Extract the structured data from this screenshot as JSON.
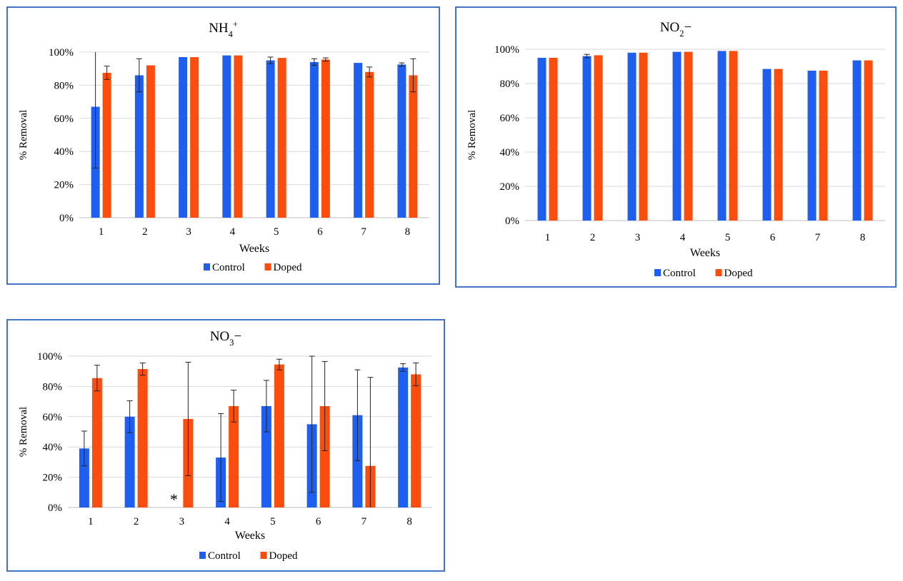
{
  "colors": {
    "control": "#1f5ff0",
    "doped": "#fb4d0e",
    "grid": "#d9d9d9",
    "frame": "#4472c4"
  },
  "chart_data": [
    {
      "type": "bar",
      "title_main": "NH",
      "title_sub": "4",
      "title_sup": "+",
      "xlabel": "Weeks",
      "ylabel": "% Removal",
      "ylim": [
        0,
        1
      ],
      "yticks": [
        "0%",
        "20%",
        "40%",
        "60%",
        "80%",
        "100%"
      ],
      "categories": [
        "1",
        "2",
        "3",
        "4",
        "5",
        "6",
        "7",
        "8"
      ],
      "legend_position": "bottom",
      "series": [
        {
          "name": "Control",
          "values": [
            0.67,
            0.86,
            0.97,
            0.98,
            0.95,
            0.94,
            0.935,
            0.925
          ],
          "err": [
            0.37,
            0.1,
            0.0,
            0.0,
            0.02,
            0.02,
            0.0,
            0.01
          ]
        },
        {
          "name": "Doped",
          "values": [
            0.875,
            0.92,
            0.97,
            0.98,
            0.965,
            0.955,
            0.88,
            0.86
          ],
          "err": [
            0.04,
            0.0,
            0.0,
            0.0,
            0.0,
            0.01,
            0.03,
            0.1
          ]
        }
      ]
    },
    {
      "type": "bar",
      "title_main": "NO",
      "title_sub": "2",
      "title_suffix": "−",
      "xlabel": "Weeks",
      "ylabel": "% Removal",
      "ylim": [
        0,
        1
      ],
      "yticks": [
        "0%",
        "20%",
        "40%",
        "60%",
        "80%",
        "100%"
      ],
      "categories": [
        "1",
        "2",
        "3",
        "4",
        "5",
        "6",
        "7",
        "8"
      ],
      "legend_position": "bottom",
      "series": [
        {
          "name": "Control",
          "values": [
            0.95,
            0.96,
            0.98,
            0.985,
            0.99,
            0.885,
            0.875,
            0.935
          ],
          "err": [
            0.0,
            0.01,
            0.0,
            0.0,
            0.0,
            0.0,
            0.0,
            0.0
          ]
        },
        {
          "name": "Doped",
          "values": [
            0.95,
            0.965,
            0.98,
            0.985,
            0.99,
            0.885,
            0.875,
            0.935
          ],
          "err": [
            0.0,
            0.0,
            0.0,
            0.0,
            0.0,
            0.0,
            0.0,
            0.0
          ]
        }
      ]
    },
    {
      "type": "bar",
      "title_main": "NO",
      "title_sub": "3",
      "title_suffix": "−",
      "xlabel": "Weeks",
      "ylabel": "% Removal",
      "ylim": [
        0,
        1
      ],
      "yticks": [
        "0%",
        "20%",
        "40%",
        "60%",
        "80%",
        "100%"
      ],
      "categories": [
        "1",
        "2",
        "3",
        "4",
        "5",
        "6",
        "7",
        "8"
      ],
      "legend_position": "bottom",
      "annotation": {
        "text": "*",
        "category": "3"
      },
      "series": [
        {
          "name": "Control",
          "values": [
            0.39,
            0.6,
            null,
            0.33,
            0.67,
            0.55,
            0.61,
            0.925
          ],
          "err": [
            0.115,
            0.105,
            null,
            0.29,
            0.17,
            0.45,
            0.3,
            0.025
          ]
        },
        {
          "name": "Doped",
          "values": [
            0.855,
            0.915,
            0.585,
            0.67,
            0.945,
            0.67,
            0.275,
            0.88
          ],
          "err": [
            0.085,
            0.04,
            0.375,
            0.105,
            0.035,
            0.295,
            0.585,
            0.075
          ]
        }
      ]
    }
  ]
}
